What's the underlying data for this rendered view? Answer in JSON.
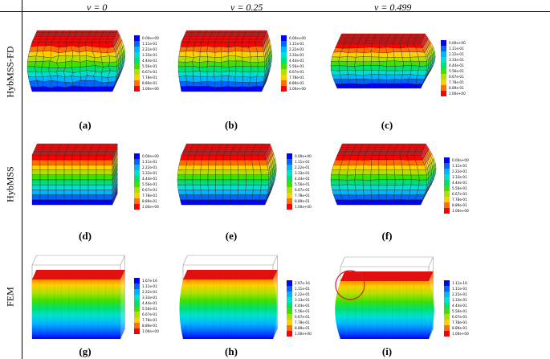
{
  "header": {
    "columns": [
      "ν = 0",
      "ν = 0.25",
      "ν = 0.499"
    ]
  },
  "rows": [
    "HybMSS-FD",
    "HybMSS",
    "FEM"
  ],
  "captions": [
    "(a)",
    "(b)",
    "(c)",
    "(d)",
    "(e)",
    "(f)",
    "(g)",
    "(h)",
    "(i)"
  ],
  "colors": {
    "scale": [
      "#0000ff",
      "#0066ff",
      "#00b4ff",
      "#00e0d0",
      "#00e070",
      "#40e000",
      "#b0e000",
      "#ffd000",
      "#ff7000",
      "#ff0000"
    ],
    "highlight_circle": "#cc2222"
  },
  "colorbars": [
    [
      "0.00e+00",
      "1.11e-01",
      "2.22e-01",
      "3.33e-01",
      "4.44e-01",
      "5.56e-01",
      "6.67e-01",
      "7.78e-01",
      "8.89e-01",
      "1.00e+00"
    ],
    [
      "0.00e+00",
      "1.11e-01",
      "2.22e-01",
      "3.33e-01",
      "4.44e-01",
      "5.56e-01",
      "6.67e-01",
      "7.78e-01",
      "8.89e-01",
      "1.00e+00"
    ],
    [
      "0.00e+00",
      "1.11e-01",
      "2.22e-01",
      "3.33e-01",
      "4.44e-01",
      "5.56e-01",
      "6.67e-01",
      "7.78e-01",
      "8.89e-01",
      "1.00e+00"
    ],
    [
      "0.00e+00",
      "1.11e-01",
      "2.22e-01",
      "3.33e-01",
      "4.44e-01",
      "5.56e-01",
      "6.67e-01",
      "7.78e-01",
      "8.89e-01",
      "1.00e+00"
    ],
    [
      "0.00e+00",
      "1.11e-01",
      "2.22e-01",
      "3.33e-01",
      "4.44e-01",
      "5.56e-01",
      "6.67e-01",
      "7.78e-01",
      "8.89e-01",
      "1.00e+00"
    ],
    [
      "0.00e+00",
      "1.11e-01",
      "2.22e-01",
      "3.33e-01",
      "4.44e-01",
      "5.56e-01",
      "6.67e-01",
      "7.78e-01",
      "8.89e-01",
      "1.00e+00"
    ],
    [
      "1.67e-16",
      "1.11e-01",
      "2.22e-01",
      "3.33e-01",
      "4.44e-01",
      "5.56e-01",
      "6.67e-01",
      "7.78e-01",
      "8.89e-01",
      "1.00e+00"
    ],
    [
      "2.97e-16",
      "1.11e-01",
      "2.22e-01",
      "3.33e-01",
      "4.44e-01",
      "5.56e-01",
      "6.67e-01",
      "7.78e-01",
      "8.89e-01",
      "1.00e+00"
    ],
    [
      "1.11e-16",
      "1.11e-01",
      "2.22e-01",
      "3.33e-01",
      "4.44e-01",
      "5.56e-01",
      "6.67e-01",
      "7.78e-01",
      "8.89e-01",
      "1.00e+00"
    ]
  ]
}
